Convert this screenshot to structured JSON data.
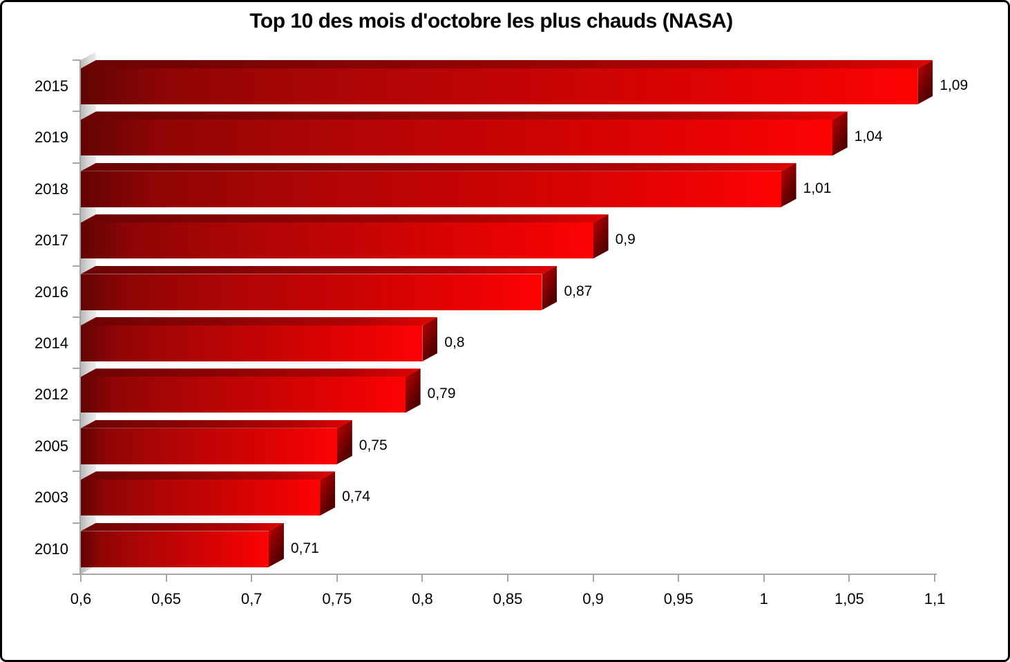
{
  "chart_data": {
    "type": "bar",
    "orientation": "horizontal",
    "style": "3d-bevel",
    "title": "Top 10 des mois d'octobre les plus chauds (NASA)",
    "categories": [
      "2015",
      "2019",
      "2018",
      "2017",
      "2016",
      "2014",
      "2012",
      "2005",
      "2003",
      "2010"
    ],
    "values": [
      1.09,
      1.04,
      1.01,
      0.9,
      0.87,
      0.8,
      0.79,
      0.75,
      0.74,
      0.71
    ],
    "value_labels": [
      "1,09",
      "1,04",
      "1,01",
      "0,9",
      "0,87",
      "0,8",
      "0,79",
      "0,75",
      "0,74",
      "0,71"
    ],
    "xlabel": "",
    "ylabel": "",
    "xlim": [
      0.6,
      1.1
    ],
    "x_tick_values": [
      0.6,
      0.65,
      0.7,
      0.75,
      0.8,
      0.85,
      0.9,
      0.95,
      1.0,
      1.05,
      1.1
    ],
    "x_tick_labels": [
      "0,6",
      "0,65",
      "0,7",
      "0,75",
      "0,8",
      "0,85",
      "0,9",
      "0,95",
      "1",
      "1,05",
      "1,1"
    ],
    "grid": false,
    "legend": false,
    "colors": {
      "bar_dark": "#8f0505",
      "bar_mid": "#c90404",
      "bar_bright": "#fc0303",
      "bar_side_dark": "#400000",
      "axis": "#a6a6a6",
      "wall": "#d6d6d6",
      "text": "#000000",
      "frame_border": "#000000",
      "background": "#ffffff"
    }
  }
}
